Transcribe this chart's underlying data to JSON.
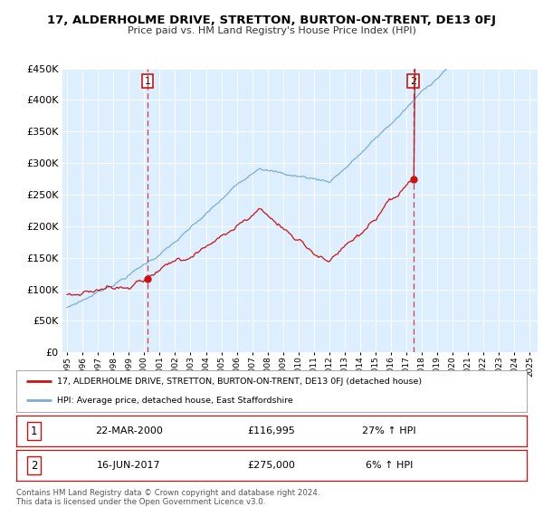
{
  "title": "17, ALDERHOLME DRIVE, STRETTON, BURTON-ON-TRENT, DE13 0FJ",
  "subtitle": "Price paid vs. HM Land Registry's House Price Index (HPI)",
  "legend_line1": "17, ALDERHOLME DRIVE, STRETTON, BURTON-ON-TRENT, DE13 0FJ (detached house)",
  "legend_line2": "HPI: Average price, detached house, East Staffordshire",
  "footer1": "Contains HM Land Registry data © Crown copyright and database right 2024.",
  "footer2": "This data is licensed under the Open Government Licence v3.0.",
  "sale1_label": "1",
  "sale1_date": "22-MAR-2000",
  "sale1_price": "£116,995",
  "sale1_hpi": "27% ↑ HPI",
  "sale2_label": "2",
  "sale2_date": "16-JUN-2017",
  "sale2_price": "£275,000",
  "sale2_hpi": "6% ↑ HPI",
  "sale1_x": 2000.22,
  "sale1_y": 116995,
  "sale2_x": 2017.45,
  "sale2_y": 275000,
  "vline1_x": 2000.22,
  "vline2_x": 2017.45,
  "hpi_color": "#7aadd4",
  "price_color": "#cc1111",
  "vline_color": "#cc1111",
  "bg_color": "#ddeeff",
  "plot_bg": "#ffffff",
  "ylim": [
    0,
    450000
  ],
  "yticks": [
    0,
    50000,
    100000,
    150000,
    200000,
    250000,
    300000,
    350000,
    400000,
    450000
  ],
  "xlim_start": 1994.7,
  "xlim_end": 2025.5,
  "xticks": [
    1995,
    1996,
    1997,
    1998,
    1999,
    2000,
    2001,
    2002,
    2003,
    2004,
    2005,
    2006,
    2007,
    2008,
    2009,
    2010,
    2011,
    2012,
    2013,
    2014,
    2015,
    2016,
    2017,
    2018,
    2019,
    2020,
    2021,
    2022,
    2023,
    2024,
    2025
  ]
}
